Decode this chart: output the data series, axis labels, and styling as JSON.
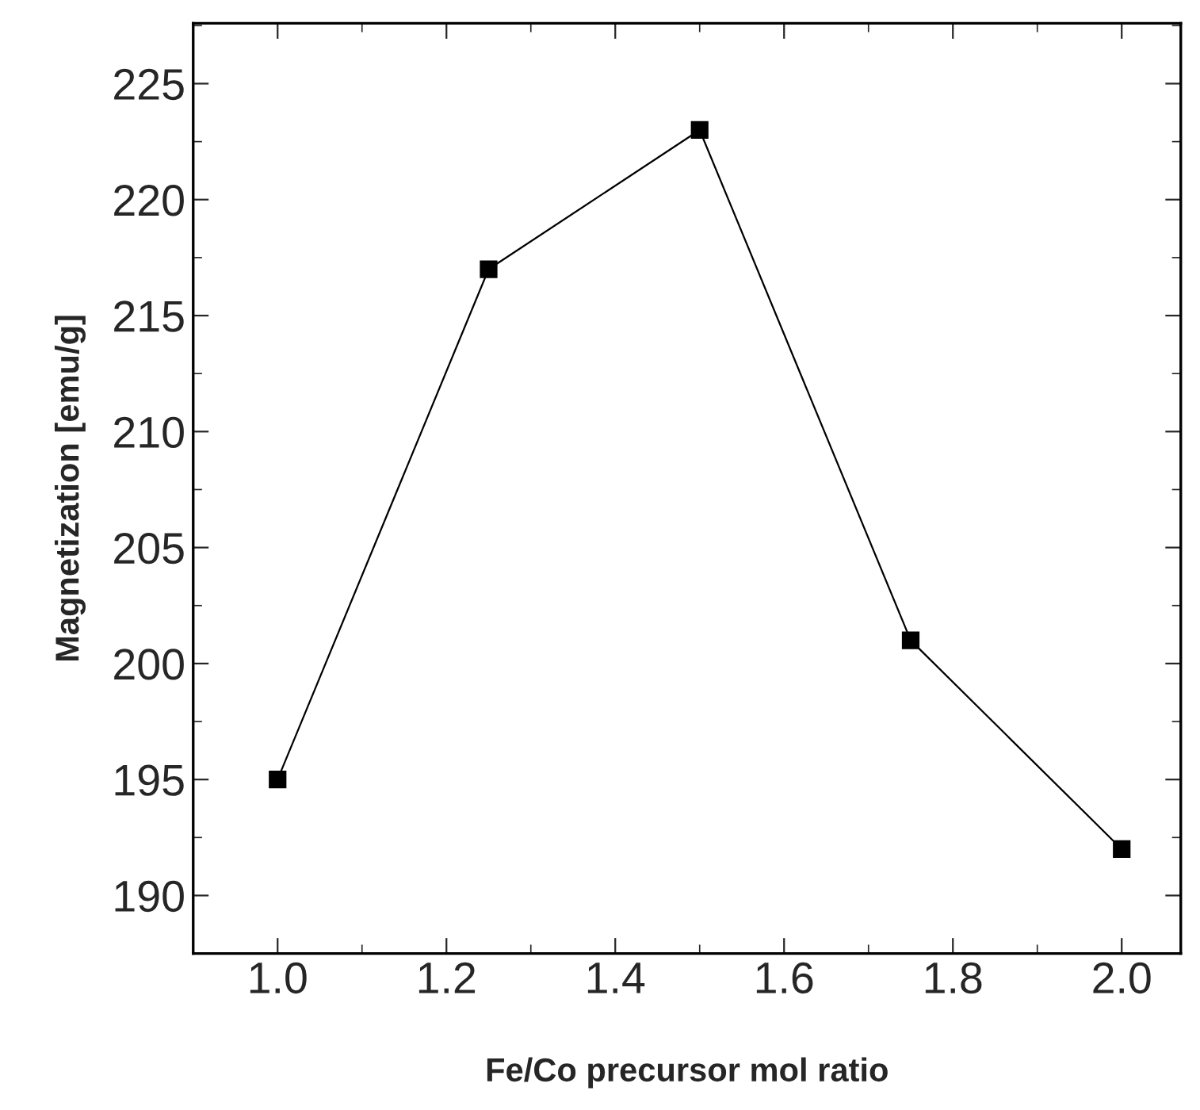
{
  "chart_data": {
    "type": "line",
    "xlabel": "Fe/Co precursor mol ratio",
    "ylabel": "Magnetization [emu/g]",
    "x": [
      1.0,
      1.25,
      1.5,
      1.75,
      2.0
    ],
    "series": [
      {
        "color": "#000000",
        "values": [
          195,
          217,
          223,
          201,
          192
        ]
      }
    ],
    "marker": "square",
    "line_style": "solid",
    "grid": false,
    "xlim": [
      0.9,
      2.07
    ],
    "ylim": [
      187.5,
      227.6
    ],
    "xticks": [
      {
        "value": 1.0,
        "label": "1.0"
      },
      {
        "value": 1.2,
        "label": "1.2"
      },
      {
        "value": 1.4,
        "label": "1.4"
      },
      {
        "value": 1.6,
        "label": "1.6"
      },
      {
        "value": 1.8,
        "label": "1.8"
      },
      {
        "value": 2.0,
        "label": "2.0"
      }
    ],
    "yticks": [
      190,
      195,
      200,
      205,
      210,
      215,
      220,
      225
    ]
  }
}
